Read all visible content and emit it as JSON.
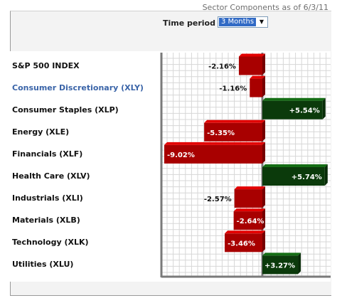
{
  "header": {
    "caption": "Sector Components as of 6/3/11"
  },
  "controls": {
    "period_label": "Time period",
    "period_value": "3 Months"
  },
  "colors": {
    "negative": "#a80000",
    "positive": "#0b3a0b",
    "link": "#3a64a8"
  },
  "chart_data": {
    "type": "bar",
    "orientation": "horizontal",
    "categories": [
      "S&P 500 INDEX",
      "Consumer Discretionary (XLY)",
      "Consumer Staples (XLP)",
      "Energy (XLE)",
      "Financials (XLF)",
      "Health Care (XLV)",
      "Industrials (XLI)",
      "Materials (XLB)",
      "Technology (XLK)",
      "Utilities (XLU)"
    ],
    "values": [
      -2.16,
      -1.16,
      5.54,
      -5.35,
      -9.02,
      5.74,
      -2.57,
      -2.64,
      -3.46,
      3.27
    ],
    "data_labels": [
      "-2.16%",
      "-1.16%",
      "+5.54%",
      "-5.35%",
      "-9.02%",
      "+5.74%",
      "-2.57%",
      "-2.64%",
      "-3.46%",
      "+3.27%"
    ],
    "link_category_index": 1,
    "xlim": [
      -9.02,
      5.74
    ],
    "grid": true,
    "legend": "none"
  }
}
